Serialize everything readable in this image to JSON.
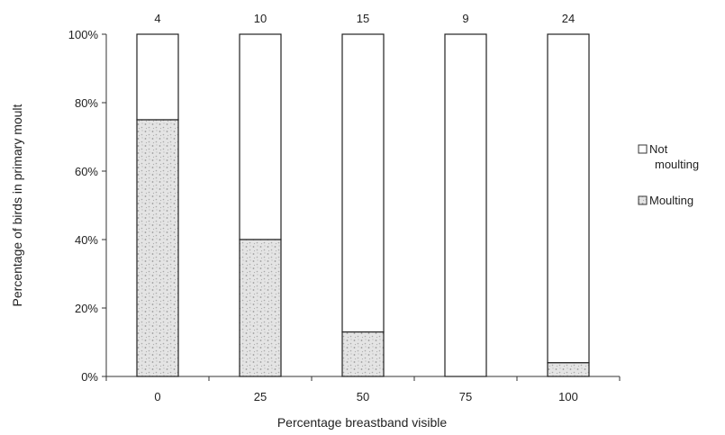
{
  "chart_data": {
    "type": "bar",
    "stacked": true,
    "percent_stacked": true,
    "categories": [
      "0",
      "25",
      "50",
      "75",
      "100"
    ],
    "series": [
      {
        "name": "Moulting",
        "values": [
          75,
          40,
          13,
          0,
          4
        ],
        "fill": "#cfcfcf"
      },
      {
        "name": "Not moulting",
        "values": [
          25,
          60,
          87,
          100,
          96
        ],
        "fill": "#ffffff"
      }
    ],
    "bar_top_labels": [
      "4",
      "10",
      "15",
      "9",
      "24"
    ],
    "xlabel": "Percentage breastband visible",
    "ylabel": "Percentage of birds in primary moult",
    "ylim": [
      0,
      100
    ],
    "yticks": [
      0,
      20,
      40,
      60,
      80,
      100
    ],
    "ytick_labels": [
      "0%",
      "20%",
      "40%",
      "60%",
      "80%",
      "100%"
    ],
    "grid": false,
    "legend": {
      "placement": "right",
      "entries": [
        {
          "line1": "Not",
          "line2": "moulting",
          "series": "Not moulting"
        },
        {
          "line1": "Moulting",
          "line2": "",
          "series": "Moulting"
        }
      ]
    }
  }
}
